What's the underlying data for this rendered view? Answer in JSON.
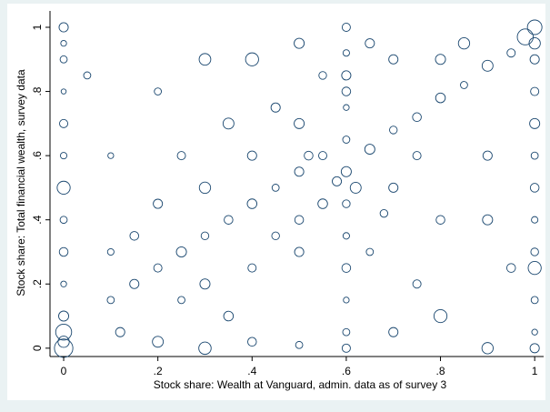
{
  "chart_data": {
    "type": "scatter",
    "xlabel": "Stock share: Wealth at Vanguard, admin. data as of survey 3",
    "ylabel": "Stock share: Total financial wealth, survey data",
    "color": "#1a476f",
    "xlim": [
      -0.029,
      1.019
    ],
    "ylim": [
      -0.026,
      1.051
    ],
    "xticks": [
      0,
      {
        "value": 0.2,
        "label": ".2"
      },
      {
        "value": 0.4,
        "label": ".4"
      },
      {
        "value": 0.6,
        "label": ".6"
      },
      {
        "value": 0.8,
        "label": ".8"
      },
      1
    ],
    "yticks": [
      0,
      {
        "value": 0.2,
        "label": ".2"
      },
      {
        "value": 0.4,
        "label": ".4"
      },
      {
        "value": 0.6,
        "label": ".6"
      },
      {
        "value": 0.8,
        "label": ".8"
      },
      1
    ],
    "x": [
      0,
      0,
      0,
      0,
      0,
      0,
      0,
      0,
      0,
      0,
      0,
      0,
      0,
      0,
      0.6,
      0.6,
      0.6,
      0.6,
      0.6,
      0.6,
      0.6,
      0.6,
      0.6,
      0.6,
      0.6,
      0.6,
      1,
      1,
      1,
      1,
      1,
      1,
      1,
      1,
      1,
      1,
      1,
      1,
      1,
      0.98,
      0.1,
      0.15,
      0.2,
      0.25,
      0.3,
      0.35,
      0.4,
      0.45,
      0.5,
      0.55,
      0.65,
      0.7,
      0.75,
      0.8,
      0.85,
      0.9,
      0.95,
      0.3,
      0.4,
      0.5,
      0.5,
      0.45,
      0.55,
      0.7,
      0.75,
      0.8,
      0.7,
      0.6,
      0.35,
      0.4,
      0.25,
      0.2,
      0.15,
      0.3,
      0.4,
      0.5,
      0.65,
      0.8,
      0.9,
      0.85,
      0.65,
      0.5,
      0.3,
      0.2,
      0.1,
      0.05,
      0.12,
      0.2,
      0.3,
      0.4,
      0.5,
      0.7,
      0.8,
      0.9,
      0.95,
      0.9,
      0.75,
      0.35,
      0.25,
      0.1,
      0.45,
      0.55,
      0.62,
      0.58,
      0.52,
      0.68
    ],
    "y": [
      1,
      0.95,
      0.9,
      0.8,
      0.7,
      0.6,
      0.5,
      0.4,
      0.3,
      0.2,
      0.1,
      0.05,
      0,
      0.02,
      1,
      0.92,
      0.85,
      0.75,
      0.65,
      0.55,
      0.45,
      0.35,
      0.25,
      0.15,
      0.05,
      0,
      1,
      0.95,
      0.9,
      0.8,
      0.7,
      0.6,
      0.5,
      0.4,
      0.3,
      0.25,
      0.15,
      0.05,
      0,
      0.97,
      0.15,
      0.2,
      0.25,
      0.3,
      0.35,
      0.4,
      0.45,
      0.5,
      0.55,
      0.6,
      0.62,
      0.68,
      0.72,
      0.78,
      0.82,
      0.88,
      0.92,
      0.5,
      0.6,
      0.7,
      0.4,
      0.35,
      0.45,
      0.5,
      0.6,
      0.9,
      0.9,
      0.8,
      0.7,
      0.9,
      0.6,
      0.45,
      0.35,
      0.2,
      0.25,
      0.3,
      0.3,
      0.4,
      0.6,
      0.95,
      0.95,
      0.95,
      0.9,
      0.8,
      0.6,
      0.85,
      0.05,
      0.02,
      0,
      0.02,
      0.01,
      0.05,
      0.1,
      0,
      0.25,
      0.4,
      0.2,
      0.1,
      0.15,
      0.3,
      0.75,
      0.85,
      0.5,
      0.52,
      0.6,
      0.42
    ],
    "sizes": [
      10,
      4,
      6,
      3,
      8,
      5,
      20,
      6,
      9,
      4,
      12,
      30,
      40,
      15,
      8,
      5,
      10,
      4,
      6,
      12,
      7,
      5,
      9,
      4,
      6,
      8,
      25,
      15,
      10,
      8,
      12,
      6,
      9,
      5,
      7,
      20,
      6,
      4,
      10,
      30,
      6,
      10,
      8,
      12,
      7,
      9,
      11,
      6,
      10,
      8,
      12,
      7,
      9,
      11,
      6,
      14,
      8,
      15,
      10,
      12,
      9,
      7,
      11,
      10,
      8,
      12,
      10,
      9,
      14,
      20,
      8,
      10,
      9,
      12,
      8,
      10,
      6,
      9,
      10,
      15,
      10,
      12,
      16,
      6,
      4,
      6,
      10,
      14,
      18,
      9,
      6,
      10,
      20,
      15,
      9,
      12,
      8,
      11,
      6,
      5,
      10,
      7,
      14,
      10,
      9,
      7
    ]
  }
}
